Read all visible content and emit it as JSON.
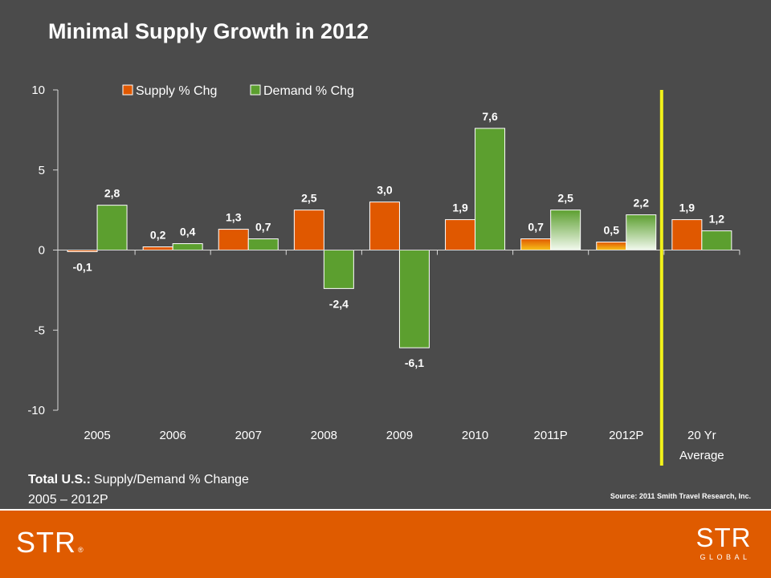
{
  "title": "Minimal Supply Growth in 2012",
  "chart_data": {
    "type": "bar",
    "categories": [
      "2005",
      "2006",
      "2007",
      "2008",
      "2009",
      "2010",
      "2011P",
      "2012P",
      "20 Yr Average"
    ],
    "series": [
      {
        "name": "Supply % Chg",
        "color": "#e05800",
        "gradient": [
          "#e05800",
          "#f7c21a"
        ],
        "values": [
          -0.1,
          0.2,
          1.3,
          2.5,
          3.0,
          1.9,
          0.7,
          0.5,
          1.9
        ],
        "labels": [
          "-0,1",
          "0,2",
          "1,3",
          "2,5",
          "3,0",
          "1,9",
          "0,7",
          "0,5",
          "1,9"
        ]
      },
      {
        "name": "Demand % Chg",
        "color": "#5c9f2f",
        "gradient": [
          "#5c9f2f",
          "#f2f9ee"
        ],
        "values": [
          2.8,
          0.4,
          0.7,
          -2.4,
          -6.1,
          7.6,
          2.5,
          2.2,
          1.2
        ],
        "labels": [
          "2,8",
          "0,4",
          "0,7",
          "-2,4",
          "-6,1",
          "7,6",
          "2,5",
          "2,2",
          "1,2"
        ]
      }
    ],
    "ylim": [
      -10,
      10
    ],
    "yticks": [
      10,
      5,
      0,
      -5,
      -10
    ],
    "ytick_labels": [
      "10",
      "5",
      "0",
      "-5",
      "-10"
    ],
    "xlabel": "",
    "ylabel": "",
    "legend": "top",
    "grid": false,
    "gradient_categories": [
      "2011P",
      "2012P"
    ],
    "divider": {
      "after_category": "2012P",
      "color": "#f2f21a"
    }
  },
  "notes": {
    "bold": "Total U.S.:",
    "text": "Supply/Demand % Change",
    "range": "2005 – 2012P"
  },
  "source": "Source: 2011 Smith Travel Research, Inc.",
  "logos": {
    "left": {
      "text": "STR",
      "mark": "®"
    },
    "right": {
      "text": "STR",
      "sub": "GLOBAL"
    }
  },
  "colors": {
    "background": "#4b4b4b",
    "footer": "#df5b00",
    "text": "#ffffff"
  }
}
